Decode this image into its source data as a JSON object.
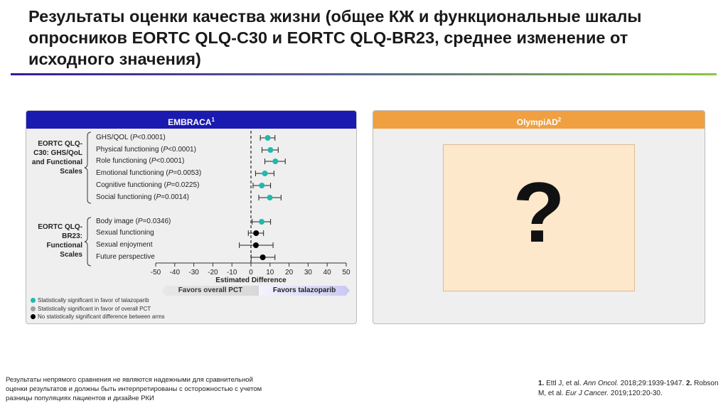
{
  "title": "Результаты оценки качества жизни (общее КЖ и функциональные шкалы опросников EORTC QLQ-C30 и EORTC QLQ-BR23, среднее изменение от исходного значения)",
  "left_panel": {
    "header": "EMBRACA",
    "header_sup": "1",
    "header_color": "#1a1ab0",
    "groups": [
      {
        "label": "EORTC QLQ-C30: GHS/QoL and Functional Scales"
      },
      {
        "label": "EORTC QLQ-BR23: Functional Scales"
      }
    ],
    "rows": [
      {
        "name": "GHS/QOL",
        "p": "<0.0001"
      },
      {
        "name": "Physical functioning",
        "p": "<0.0001"
      },
      {
        "name": "Role functioning",
        "p": "<0.0001"
      },
      {
        "name": "Emotional functioning",
        "p": "=0.0053"
      },
      {
        "name": "Cognitive functioning",
        "p": "=0.0225"
      },
      {
        "name": "Social functioning",
        "p": "=0.0014"
      },
      {
        "name": "Body image",
        "p": "=0.0346"
      },
      {
        "name": "Sexual functioning",
        "p": ""
      },
      {
        "name": "Sexual enjoyment",
        "p": ""
      },
      {
        "name": "Future perspective",
        "p": ""
      }
    ],
    "favors_left": "Favors overall PCT",
    "favors_right": "Favors talazoparib",
    "legend": [
      {
        "label": "Statistically significant in favor of talazoparib",
        "color": "#20b8b0"
      },
      {
        "label": "Statistically significant in favor of overall PCT",
        "color": "#a0a0a0"
      },
      {
        "label": "No statistically significant difference between arms",
        "color": "#000000"
      }
    ]
  },
  "chart_data": {
    "type": "forest",
    "xlabel": "Estimated Difference",
    "xlim": [
      -50,
      50
    ],
    "xticks": [
      "-50",
      "-40",
      "-30",
      "-20",
      "-10",
      "0",
      "10",
      "20",
      "30",
      "40",
      "50"
    ],
    "reference_line": 0,
    "points": [
      {
        "label": "GHS/QOL",
        "estimate": 8.8,
        "ci": [
          4.9,
          12.6
        ],
        "status": "talazoparib"
      },
      {
        "label": "Physical functioning",
        "estimate": 10.2,
        "ci": [
          5.8,
          14.3
        ],
        "status": "talazoparib"
      },
      {
        "label": "Role functioning",
        "estimate": 12.8,
        "ci": [
          7.3,
          18.0
        ],
        "status": "talazoparib"
      },
      {
        "label": "Emotional functioning",
        "estimate": 7.3,
        "ci": [
          2.4,
          12.1
        ],
        "status": "talazoparib"
      },
      {
        "label": "Cognitive functioning",
        "estimate": 5.7,
        "ci": [
          1.1,
          10.3
        ],
        "status": "talazoparib"
      },
      {
        "label": "Social functioning",
        "estimate": 9.9,
        "ci": [
          4.1,
          15.8
        ],
        "status": "talazoparib"
      },
      {
        "label": "Body image",
        "estimate": 5.6,
        "ci": [
          0.6,
          10.3
        ],
        "status": "talazoparib"
      },
      {
        "label": "Sexual functioning",
        "estimate": 2.7,
        "ci": [
          -1.4,
          6.6
        ],
        "status": "ns"
      },
      {
        "label": "Sexual enjoyment",
        "estimate": 2.6,
        "ci": [
          -6.1,
          11.6
        ],
        "status": "ns"
      },
      {
        "label": "Future perspective",
        "estimate": 6.2,
        "ci": [
          0.1,
          12.6
        ],
        "status": "ns"
      }
    ]
  },
  "right_panel": {
    "header": "OlympiAD",
    "header_sup": "2",
    "header_color": "#f0a040",
    "placeholder": "?"
  },
  "footnote": "Результаты непрямого сравнения не являются надежными для сравнительной оценки результатов и должны быть интерпретированы с осторожностью с учетом разницы популяциях пациентов и дизайне РКИ",
  "references": {
    "r1_num": "1.",
    "r1_text": " Ettl J, et al. ",
    "r1_journal": "Ann Oncol.",
    "r1_rest": " 2018;29:1939-1947. ",
    "r2_num": "2.",
    "r2_text": " Robson M, et al. ",
    "r2_journal": "Eur J Cancer.",
    "r2_rest": " 2019;120:20-30."
  }
}
